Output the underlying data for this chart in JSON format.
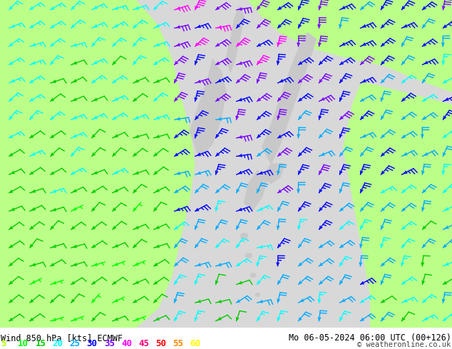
{
  "title_left": "Wind 850 hPa [kts] ECMWF",
  "title_right": "Mo 06-05-2024 06:00 UTC (00+126)",
  "copyright": "© weatheronline.co.uk",
  "legend_values": [
    5,
    10,
    15,
    20,
    25,
    30,
    35,
    40,
    45,
    50,
    55,
    60
  ],
  "legend_colors": [
    "#aaff00",
    "#00ff00",
    "#00cc00",
    "#00ffff",
    "#00aaff",
    "#0000ff",
    "#7700ff",
    "#ff00ff",
    "#ff0077",
    "#ff0000",
    "#ff8800",
    "#ffff00"
  ],
  "bg_color": "#ffffff",
  "sea_color": "#d8d8d8",
  "land_color": "#bbff88",
  "text_color": "#000000",
  "fig_width": 6.34,
  "fig_height": 4.9,
  "dpi": 100,
  "title_fontsize": 8.5,
  "legend_fontsize": 9
}
